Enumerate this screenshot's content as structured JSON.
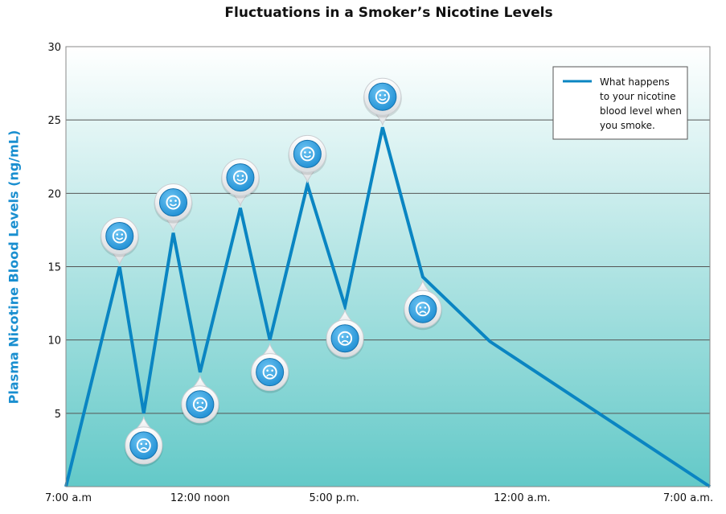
{
  "chart_data": {
    "type": "line",
    "title": "Fluctuations in a Smoker’s Nicotine Levels",
    "xlabel": "",
    "ylabel": "Plasma Nicotine Blood Levels (ng/mL)",
    "ylim": [
      0,
      30
    ],
    "yticks": [
      5,
      10,
      15,
      20,
      25,
      30
    ],
    "xlim": [
      0,
      24
    ],
    "xticks": [
      {
        "x": 0,
        "label": "7:00 a.m"
      },
      {
        "x": 5,
        "label": "12:00 noon"
      },
      {
        "x": 10,
        "label": "5:00 p.m."
      },
      {
        "x": 17,
        "label": "12:00 a.m."
      },
      {
        "x": 24,
        "label": "7:00 a.m."
      }
    ],
    "grid": true,
    "legend_position": "top-right",
    "legend_lines": [
      "What happens",
      "to your nicotine",
      "blood level when",
      "you smoke."
    ],
    "series": [
      {
        "name": "What happens to your nicotine blood level when you smoke.",
        "color": "#0a85c2",
        "x": [
          0,
          2,
          2.9,
          4,
          5,
          6.5,
          7.6,
          9,
          10.4,
          11.8,
          13.3,
          15.8,
          24
        ],
        "values": [
          0,
          15,
          5,
          17.3,
          7.8,
          19,
          10,
          20.6,
          12.3,
          24.5,
          14.3,
          9.9,
          0
        ]
      }
    ],
    "markers": [
      {
        "x": 2,
        "y": 15,
        "mood": "happy"
      },
      {
        "x": 2.9,
        "y": 5,
        "mood": "sad"
      },
      {
        "x": 4,
        "y": 17.3,
        "mood": "happy"
      },
      {
        "x": 5,
        "y": 7.8,
        "mood": "sad"
      },
      {
        "x": 6.5,
        "y": 19,
        "mood": "happy"
      },
      {
        "x": 7.6,
        "y": 10,
        "mood": "sad"
      },
      {
        "x": 9,
        "y": 20.6,
        "mood": "happy"
      },
      {
        "x": 10.4,
        "y": 12.3,
        "mood": "sad"
      },
      {
        "x": 11.8,
        "y": 24.5,
        "mood": "happy"
      },
      {
        "x": 13.3,
        "y": 14.3,
        "mood": "sad"
      }
    ]
  },
  "colors": {
    "line": "#0a85c2",
    "bg_top": "#ffffff",
    "bg_bottom": "#63c9c8",
    "ylabel": "#1a8fd0",
    "marker_blue": "#1f8fd4"
  }
}
